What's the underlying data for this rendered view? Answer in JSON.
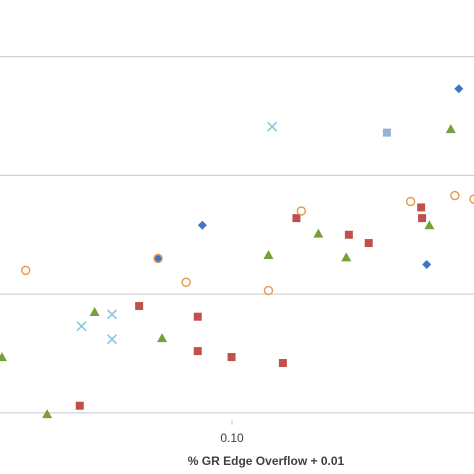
{
  "chart_data": {
    "type": "scatter",
    "title": "",
    "xlabel": "% GR Edge Overflow + 0.01",
    "ylabel": "",
    "x_scale": "log",
    "xlim": [
      0.0352,
      0.3
    ],
    "ylim": [
      0.94,
      4.3
    ],
    "x_ticks": [
      {
        "value": 0.1,
        "label": "0.10"
      }
    ],
    "y_gridlines": [
      1,
      2,
      3,
      4
    ],
    "legend": "none",
    "series": [
      {
        "marker": "diamond",
        "color": "#4472c4",
        "points": [
          [
            0.0715,
            2.3
          ],
          [
            0.0874,
            2.58
          ],
          [
            0.242,
            2.25
          ],
          [
            0.28,
            3.73
          ]
        ]
      },
      {
        "marker": "square",
        "color": "#c0504d",
        "points": [
          [
            0.0501,
            1.06
          ],
          [
            0.0656,
            1.9
          ],
          [
            0.0856,
            1.81
          ],
          [
            0.0856,
            1.52
          ],
          [
            0.0998,
            1.47
          ],
          [
            0.126,
            1.42
          ],
          [
            0.134,
            2.64
          ],
          [
            0.17,
            2.5
          ],
          [
            0.186,
            2.43
          ],
          [
            0.236,
            2.73
          ],
          [
            0.237,
            2.64
          ]
        ]
      },
      {
        "marker": "triangle",
        "color": "#77a03b",
        "points": [
          [
            0.0352,
            1.47
          ],
          [
            0.0432,
            0.99
          ],
          [
            0.0536,
            1.85
          ],
          [
            0.0728,
            1.63
          ],
          [
            0.118,
            2.33
          ],
          [
            0.148,
            2.51
          ],
          [
            0.168,
            2.31
          ],
          [
            0.245,
            2.58
          ],
          [
            0.27,
            3.39
          ]
        ]
      },
      {
        "marker": "cross",
        "color": "#8ac6dc",
        "points": [
          [
            0.0505,
            1.73
          ],
          [
            0.058,
            1.83
          ],
          [
            0.058,
            1.62
          ],
          [
            0.12,
            3.41
          ]
        ]
      },
      {
        "marker": "square",
        "color": "#95b3d7",
        "points": [
          [
            0.202,
            3.36
          ]
        ]
      },
      {
        "marker": "circle-open",
        "color": "#e39a4c",
        "points": [
          [
            0.0392,
            2.2
          ],
          [
            0.0715,
            2.3
          ],
          [
            0.0812,
            2.1
          ],
          [
            0.118,
            2.03
          ],
          [
            0.137,
            2.7
          ],
          [
            0.225,
            2.78
          ],
          [
            0.275,
            2.83
          ],
          [
            0.3,
            2.8
          ]
        ]
      }
    ]
  }
}
